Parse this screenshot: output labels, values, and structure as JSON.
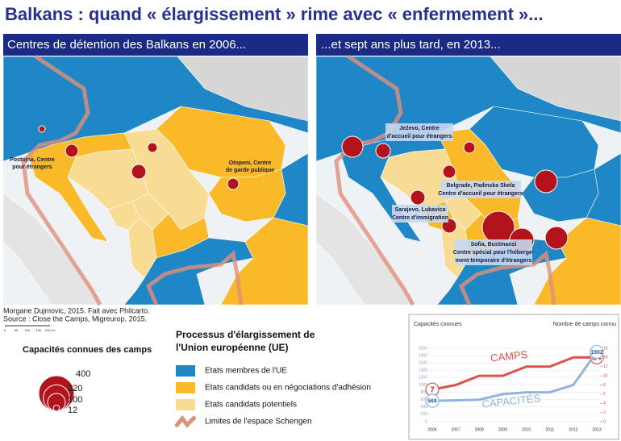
{
  "title": "Balkans : quand « élargissement » rime avec « enfermement »...",
  "left_panel": {
    "heading": "Centres de détention des Balkans en 2006...",
    "labels": [
      {
        "lines": [
          "Postojna, Centre",
          "pour étrangers"
        ]
      },
      {
        "lines": [
          "Otopeni, Centre",
          "de garde publique"
        ]
      }
    ]
  },
  "right_panel": {
    "heading": "...et sept ans plus tard, en 2013...",
    "labels": [
      {
        "lines": [
          "Ježevo, Centre",
          "d'accueil pour étrangers"
        ]
      },
      {
        "lines": [
          "Belgrade, Padinska Skela",
          "Centre d'accueil pour étrangers"
        ]
      },
      {
        "lines": [
          "Sarajevo, Lukavica",
          "Centre d'immigration"
        ]
      },
      {
        "lines": [
          "Sofia, Bustmansi",
          "Centre spécial pour l'héberge-",
          "ment temporaire d'étrangers"
        ]
      }
    ]
  },
  "credits": [
    "Morgane Dujmovic, 2015. Fait avec Philcarto.",
    "Source : Close the Camps, Migreurop, 2015."
  ],
  "scale": [
    "0",
    "50",
    "100",
    "150",
    "200 km"
  ],
  "size_legend": {
    "title": "Capacités connues des camps",
    "values": [
      400,
      220,
      100,
      12
    ]
  },
  "enlargement_legend": {
    "title": [
      "Processus d'élargissement de",
      "l'Union européenne (UE)"
    ],
    "items": [
      {
        "label": "Etats membres de l'UE",
        "color": "#1f87c6"
      },
      {
        "label": "Etats candidats ou en négociations d'adhésion",
        "color": "#f9b928"
      },
      {
        "label": "Etats candidats potentiels",
        "color": "#f8dc94"
      },
      {
        "label": "Limites de l'espace Schengen",
        "color": "#e0907a"
      }
    ]
  },
  "chart_data": {
    "type": "line",
    "y_label": "Capacités connues",
    "y2_label": "Nombre de camps connu",
    "categories": [
      "2006",
      "2007",
      "2008",
      "2009",
      "2010",
      "2011",
      "2012",
      "2013"
    ],
    "ylim": [
      0,
      2000
    ],
    "yticks": [
      0,
      200,
      400,
      600,
      800,
      1000,
      1200,
      1400,
      1600,
      1800,
      2000
    ],
    "y2lim": [
      0,
      16
    ],
    "y2ticks": [
      0,
      2,
      4,
      6,
      8,
      10,
      12,
      14,
      16
    ],
    "series": [
      {
        "name": "CAMPS",
        "color": "#d9534f",
        "axis": "y2",
        "values": [
          7,
          8,
          10,
          10,
          12,
          12,
          14,
          14
        ]
      },
      {
        "name": "CAPACITÉS",
        "color": "#8fb4de",
        "values": [
          568,
          580,
          600,
          750,
          800,
          800,
          1000,
          1902
        ]
      }
    ]
  }
}
